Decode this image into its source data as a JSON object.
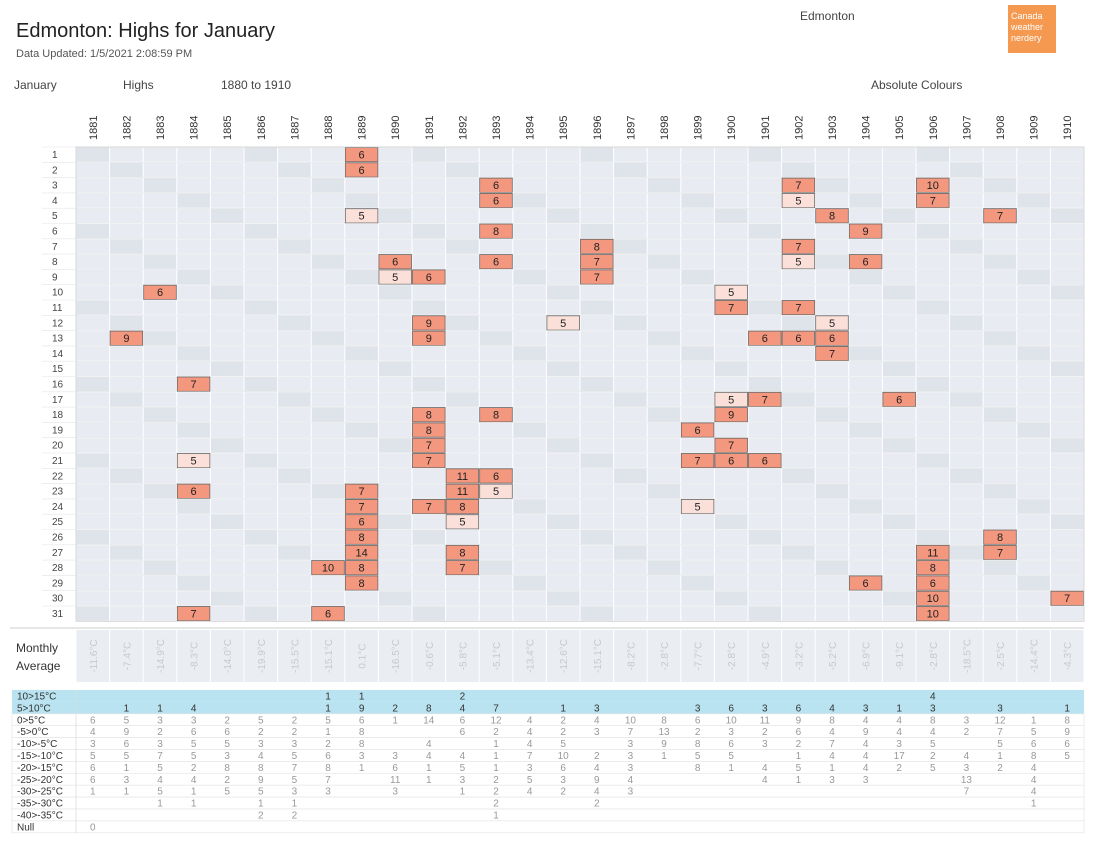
{
  "header": {
    "title": "Edmonton: Highs for January",
    "updated": "Data Updated: 1/5/2021 2:08:59 PM",
    "place": "Edmonton",
    "logo": [
      "Canada",
      "weather",
      "nerdery"
    ],
    "month": "January",
    "measure": "Highs",
    "range": "1880 to 1910",
    "colour_mode": "Absolute Colours"
  },
  "colors": {
    "warm": "#f4977f",
    "warm_light": "#fbe0da",
    "cool": "#d6dde7",
    "cool_dark": "#c5ced9",
    "band": "#b9e3f0"
  },
  "chart_data": {
    "type": "heatmap",
    "years": [
      "1881",
      "1882",
      "1883",
      "1884",
      "1885",
      "1886",
      "1887",
      "1888",
      "1889",
      "1890",
      "1891",
      "1892",
      "1893",
      "1894",
      "1895",
      "1896",
      "1897",
      "1898",
      "1899",
      "1900",
      "1901",
      "1902",
      "1903",
      "1904",
      "1905",
      "1906",
      "1907",
      "1908",
      "1909",
      "1910"
    ],
    "days": [
      "1",
      "2",
      "3",
      "4",
      "5",
      "6",
      "7",
      "8",
      "9",
      "10",
      "11",
      "12",
      "13",
      "14",
      "15",
      "16",
      "17",
      "18",
      "19",
      "20",
      "21",
      "22",
      "23",
      "24",
      "25",
      "26",
      "27",
      "28",
      "29",
      "30",
      "31"
    ],
    "highlighted_cells": [
      {
        "day": 1,
        "year": "1889",
        "value": 6
      },
      {
        "day": 2,
        "year": "1889",
        "value": 6
      },
      {
        "day": 3,
        "year": "1893",
        "value": 6
      },
      {
        "day": 3,
        "year": "1902",
        "value": 7
      },
      {
        "day": 3,
        "year": "1906",
        "value": 10
      },
      {
        "day": 4,
        "year": "1893",
        "value": 6
      },
      {
        "day": 4,
        "year": "1902",
        "value": 5
      },
      {
        "day": 4,
        "year": "1906",
        "value": 7
      },
      {
        "day": 5,
        "year": "1889",
        "value": 5
      },
      {
        "day": 5,
        "year": "1903",
        "value": 8
      },
      {
        "day": 5,
        "year": "1908",
        "value": 7
      },
      {
        "day": 6,
        "year": "1893",
        "value": 8
      },
      {
        "day": 6,
        "year": "1904",
        "value": 9
      },
      {
        "day": 7,
        "year": "1896",
        "value": 8
      },
      {
        "day": 7,
        "year": "1902",
        "value": 7
      },
      {
        "day": 8,
        "year": "1890",
        "value": 6
      },
      {
        "day": 8,
        "year": "1893",
        "value": 6
      },
      {
        "day": 8,
        "year": "1896",
        "value": 7
      },
      {
        "day": 8,
        "year": "1902",
        "value": 5
      },
      {
        "day": 8,
        "year": "1904",
        "value": 6
      },
      {
        "day": 9,
        "year": "1890",
        "value": 5
      },
      {
        "day": 9,
        "year": "1891",
        "value": 6
      },
      {
        "day": 9,
        "year": "1896",
        "value": 7
      },
      {
        "day": 10,
        "year": "1883",
        "value": 6
      },
      {
        "day": 10,
        "year": "1900",
        "value": 5
      },
      {
        "day": 11,
        "year": "1900",
        "value": 7
      },
      {
        "day": 11,
        "year": "1902",
        "value": 7
      },
      {
        "day": 12,
        "year": "1891",
        "value": 9
      },
      {
        "day": 12,
        "year": "1895",
        "value": 5
      },
      {
        "day": 12,
        "year": "1903",
        "value": 5
      },
      {
        "day": 13,
        "year": "1882",
        "value": 9
      },
      {
        "day": 13,
        "year": "1891",
        "value": 9
      },
      {
        "day": 13,
        "year": "1901",
        "value": 6
      },
      {
        "day": 13,
        "year": "1902",
        "value": 6
      },
      {
        "day": 13,
        "year": "1903",
        "value": 6
      },
      {
        "day": 14,
        "year": "1903",
        "value": 7
      },
      {
        "day": 16,
        "year": "1884",
        "value": 7
      },
      {
        "day": 17,
        "year": "1900",
        "value": 5
      },
      {
        "day": 17,
        "year": "1901",
        "value": 7
      },
      {
        "day": 17,
        "year": "1905",
        "value": 6
      },
      {
        "day": 18,
        "year": "1891",
        "value": 8
      },
      {
        "day": 18,
        "year": "1893",
        "value": 8
      },
      {
        "day": 18,
        "year": "1900",
        "value": 9
      },
      {
        "day": 19,
        "year": "1891",
        "value": 8
      },
      {
        "day": 19,
        "year": "1899",
        "value": 6
      },
      {
        "day": 20,
        "year": "1891",
        "value": 7
      },
      {
        "day": 20,
        "year": "1900",
        "value": 7
      },
      {
        "day": 21,
        "year": "1884",
        "value": 5
      },
      {
        "day": 21,
        "year": "1891",
        "value": 7
      },
      {
        "day": 21,
        "year": "1899",
        "value": 7
      },
      {
        "day": 21,
        "year": "1900",
        "value": 6
      },
      {
        "day": 21,
        "year": "1901",
        "value": 6
      },
      {
        "day": 22,
        "year": "1892",
        "value": 11
      },
      {
        "day": 22,
        "year": "1893",
        "value": 6
      },
      {
        "day": 23,
        "year": "1884",
        "value": 6
      },
      {
        "day": 23,
        "year": "1889",
        "value": 7
      },
      {
        "day": 23,
        "year": "1892",
        "value": 11
      },
      {
        "day": 23,
        "year": "1893",
        "value": 5
      },
      {
        "day": 24,
        "year": "1889",
        "value": 7
      },
      {
        "day": 24,
        "year": "1891",
        "value": 7
      },
      {
        "day": 24,
        "year": "1892",
        "value": 8
      },
      {
        "day": 24,
        "year": "1899",
        "value": 5
      },
      {
        "day": 25,
        "year": "1889",
        "value": 6
      },
      {
        "day": 25,
        "year": "1892",
        "value": 5
      },
      {
        "day": 26,
        "year": "1889",
        "value": 8
      },
      {
        "day": 26,
        "year": "1908",
        "value": 8
      },
      {
        "day": 27,
        "year": "1889",
        "value": 14
      },
      {
        "day": 27,
        "year": "1892",
        "value": 8
      },
      {
        "day": 27,
        "year": "1906",
        "value": 11
      },
      {
        "day": 27,
        "year": "1908",
        "value": 7
      },
      {
        "day": 28,
        "year": "1888",
        "value": 10
      },
      {
        "day": 28,
        "year": "1889",
        "value": 8
      },
      {
        "day": 28,
        "year": "1892",
        "value": 7
      },
      {
        "day": 28,
        "year": "1906",
        "value": 8
      },
      {
        "day": 29,
        "year": "1889",
        "value": 8
      },
      {
        "day": 29,
        "year": "1904",
        "value": 6
      },
      {
        "day": 29,
        "year": "1906",
        "value": 6
      },
      {
        "day": 30,
        "year": "1906",
        "value": 10
      },
      {
        "day": 30,
        "year": "1910",
        "value": 7
      },
      {
        "day": 31,
        "year": "1884",
        "value": 7
      },
      {
        "day": 31,
        "year": "1888",
        "value": 6
      },
      {
        "day": 31,
        "year": "1906",
        "value": 10
      }
    ],
    "monthly_average_label": [
      "Monthly",
      "Average"
    ],
    "monthly_average": [
      "-11.6°C",
      "-7.4°C",
      "-14.9°C",
      "-8.3°C",
      "-14.0°C",
      "-19.9°C",
      "-15.5°C",
      "-15.1°C",
      "0.1°C",
      "-16.5°C",
      "-0.6°C",
      "-5.8°C",
      "-5.1°C",
      "-13.4°C",
      "-12.6°C",
      "-15.1°C",
      "-8.2°C",
      "-2.8°C",
      "-7.7°C",
      "-2.8°C",
      "-4.9°C",
      "-3.2°C",
      "-5.2°C",
      "-6.9°C",
      "-9.1°C",
      "-2.8°C",
      "-18.5°C",
      "-2.5°C",
      "-14.4°C",
      "-4.3°C"
    ],
    "bin_labels": [
      "10>15°C",
      "5>10°C",
      "0>5°C",
      "-5>0°C",
      "-10>-5°C",
      "-15>-10°C",
      "-20>-15°C",
      "-25>-20°C",
      "-30>-25°C",
      "-35>-30°C",
      "-40>-35°C",
      "Null"
    ],
    "bin_counts": [
      [
        "",
        "",
        "",
        "",
        "",
        "",
        "",
        "1",
        "1",
        "",
        "",
        "2",
        "",
        "",
        "",
        "",
        "",
        "",
        "",
        "",
        "",
        "",
        "",
        "",
        "",
        "4",
        "",
        "",
        "",
        ""
      ],
      [
        "",
        "1",
        "1",
        "4",
        "",
        "",
        "",
        "1",
        "9",
        "2",
        "8",
        "4",
        "7",
        "",
        "1",
        "3",
        "",
        "",
        "3",
        "6",
        "3",
        "6",
        "4",
        "3",
        "1",
        "3",
        "",
        "3",
        "",
        "1"
      ],
      [
        "6",
        "5",
        "3",
        "3",
        "2",
        "5",
        "2",
        "5",
        "6",
        "1",
        "14",
        "6",
        "12",
        "4",
        "2",
        "4",
        "10",
        "8",
        "6",
        "10",
        "11",
        "9",
        "8",
        "4",
        "4",
        "8",
        "3",
        "12",
        "1",
        "8"
      ],
      [
        "4",
        "9",
        "2",
        "6",
        "6",
        "2",
        "2",
        "1",
        "8",
        "",
        "",
        "6",
        "2",
        "4",
        "2",
        "3",
        "7",
        "13",
        "2",
        "3",
        "2",
        "6",
        "4",
        "9",
        "4",
        "4",
        "2",
        "7",
        "5",
        "9"
      ],
      [
        "3",
        "6",
        "3",
        "5",
        "5",
        "3",
        "3",
        "2",
        "8",
        "",
        "4",
        "",
        "1",
        "4",
        "5",
        "",
        "3",
        "9",
        "8",
        "6",
        "3",
        "2",
        "7",
        "4",
        "3",
        "5",
        "",
        "5",
        "6",
        "6"
      ],
      [
        "5",
        "5",
        "7",
        "5",
        "3",
        "4",
        "5",
        "6",
        "3",
        "3",
        "4",
        "4",
        "1",
        "7",
        "10",
        "2",
        "3",
        "1",
        "5",
        "5",
        "",
        "1",
        "4",
        "4",
        "17",
        "2",
        "4",
        "1",
        "8",
        "5"
      ],
      [
        "6",
        "1",
        "5",
        "2",
        "8",
        "8",
        "7",
        "8",
        "1",
        "6",
        "1",
        "5",
        "1",
        "3",
        "6",
        "4",
        "3",
        "",
        "8",
        "1",
        "4",
        "5",
        "1",
        "4",
        "2",
        "5",
        "3",
        "2",
        "4",
        ""
      ],
      [
        "6",
        "3",
        "4",
        "4",
        "2",
        "9",
        "5",
        "7",
        "",
        "11",
        "1",
        "3",
        "2",
        "5",
        "3",
        "9",
        "4",
        "",
        "",
        "",
        "4",
        "1",
        "3",
        "3",
        "",
        "",
        "13",
        "",
        "4",
        ""
      ],
      [
        "1",
        "1",
        "5",
        "1",
        "5",
        "5",
        "3",
        "3",
        "",
        "3",
        "",
        "1",
        "2",
        "4",
        "2",
        "4",
        "3",
        "",
        "",
        "",
        "",
        "",
        "",
        "",
        "",
        "",
        "7",
        "",
        "4",
        ""
      ],
      [
        "",
        "",
        "1",
        "1",
        "",
        "1",
        "1",
        "",
        "",
        "",
        "",
        "",
        "2",
        "",
        "",
        "2",
        "",
        "",
        "",
        "",
        "",
        "",
        "",
        "",
        "",
        "",
        "",
        "",
        "1",
        ""
      ],
      [
        "",
        "",
        "",
        "",
        "",
        "2",
        "2",
        "",
        "",
        "",
        "",
        "",
        "1",
        "",
        "",
        "",
        "",
        "",
        "",
        "",
        "",
        "",
        "",
        "",
        "",
        "",
        "",
        "",
        "",
        ""
      ],
      [
        "0",
        "",
        "",
        "",
        "",
        "",
        "",
        "",
        "",
        "",
        "",
        "",
        "",
        "",
        "",
        "",
        "",
        "",
        "",
        "",
        "",
        "",
        "",
        "",
        "",
        "",
        "",
        "",
        "",
        ""
      ]
    ]
  }
}
